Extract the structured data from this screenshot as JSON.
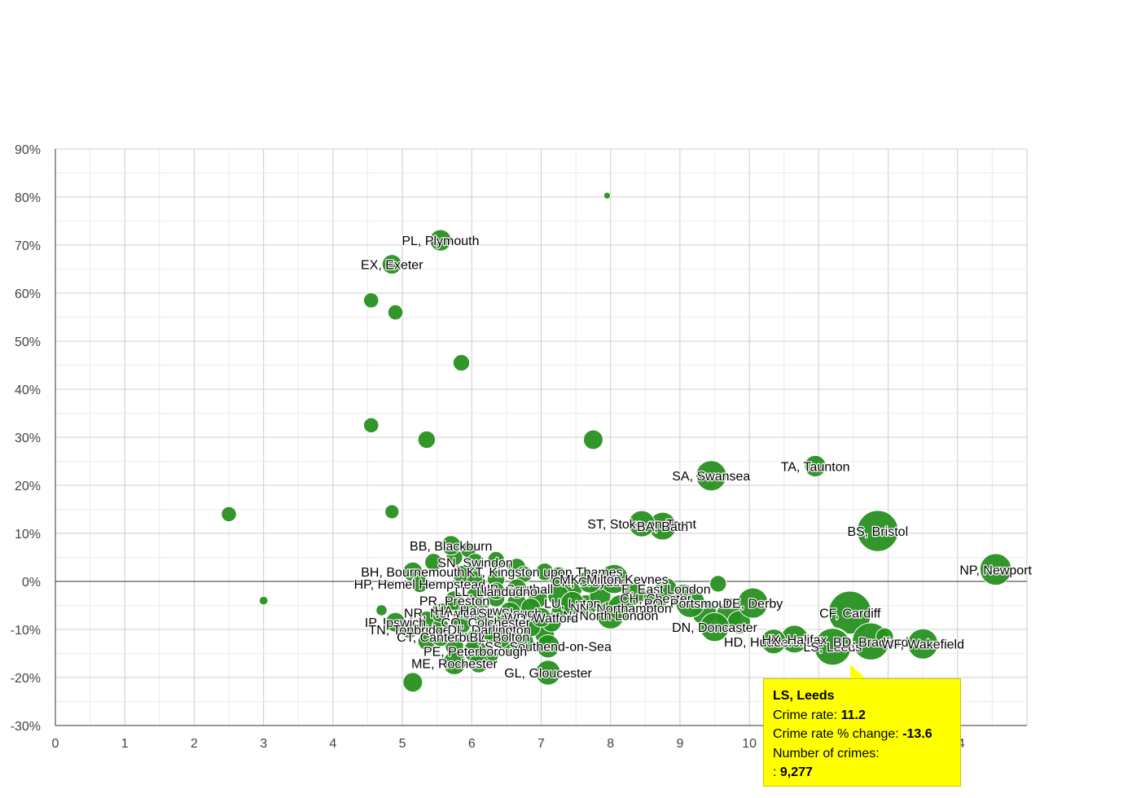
{
  "chart_data": {
    "type": "scatter",
    "variant": "bubble",
    "title": "",
    "xlabel": "",
    "ylabel": "",
    "xlim": [
      0,
      14
    ],
    "ylim": [
      -30,
      90
    ],
    "x_ticks": [
      "0",
      "1",
      "2",
      "3",
      "4",
      "5",
      "6",
      "7",
      "8",
      "9",
      "10",
      "",
      "",
      "14"
    ],
    "y_ticks": [
      "90%",
      "80%",
      "70%",
      "60%",
      "50%",
      "40%",
      "30%",
      "20%",
      "10%",
      "0%",
      "-10%",
      "-20%",
      "-30%"
    ],
    "grid": true,
    "color": "#27901f",
    "points": [
      {
        "label": "",
        "x": 7.95,
        "y": 80.3,
        "crimes": 300
      },
      {
        "label": "PL, Plymouth",
        "x": 5.55,
        "y": 71.0,
        "crimes": 3000
      },
      {
        "label": "EX, Exeter",
        "x": 4.85,
        "y": 66.0,
        "crimes": 2500
      },
      {
        "label": "",
        "x": 4.55,
        "y": 58.5,
        "crimes": 1500
      },
      {
        "label": "",
        "x": 4.9,
        "y": 56.0,
        "crimes": 1500
      },
      {
        "label": "",
        "x": 5.85,
        "y": 45.5,
        "crimes": 1800
      },
      {
        "label": "",
        "x": 4.55,
        "y": 32.5,
        "crimes": 1500
      },
      {
        "label": "",
        "x": 5.35,
        "y": 29.5,
        "crimes": 2000
      },
      {
        "label": "",
        "x": 7.75,
        "y": 29.5,
        "crimes": 2500
      },
      {
        "label": "SA, Swansea",
        "x": 9.45,
        "y": 22.0,
        "crimes": 6000
      },
      {
        "label": "TA, Taunton",
        "x": 10.95,
        "y": 24.0,
        "crimes": 3000
      },
      {
        "label": "",
        "x": 2.5,
        "y": 14.0,
        "crimes": 1500
      },
      {
        "label": "",
        "x": 4.85,
        "y": 14.5,
        "crimes": 1300
      },
      {
        "label": "ST, Stoke-on-Trent",
        "x": 8.45,
        "y": 12.0,
        "crimes": 4500
      },
      {
        "label": "BA, Bath",
        "x": 8.75,
        "y": 11.5,
        "crimes": 5000
      },
      {
        "label": "BS, Bristol",
        "x": 11.85,
        "y": 10.5,
        "crimes": 11000
      },
      {
        "label": "NP, Newport",
        "x": 13.55,
        "y": 2.5,
        "crimes": 6500
      },
      {
        "label": "BB, Blackburn",
        "x": 5.7,
        "y": 7.5,
        "crimes": 2500
      },
      {
        "label": "SN, Swindon",
        "x": 6.05,
        "y": 4.0,
        "crimes": 2000
      },
      {
        "label": "BH, Bournemouth",
        "x": 5.15,
        "y": 2.0,
        "crimes": 2500
      },
      {
        "label": "HP, Hemel Hempstead",
        "x": 5.25,
        "y": -0.5,
        "crimes": 2000
      },
      {
        "label": "KT, Kingston upon Thames",
        "x": 7.05,
        "y": 2.0,
        "crimes": 2000
      },
      {
        "label": "CR, Croydon",
        "x": 7.7,
        "y": 0.0,
        "crimes": 3500
      },
      {
        "label": "MK, Milton Keynes",
        "x": 8.05,
        "y": 0.5,
        "crimes": 5500
      },
      {
        "label": "E, East London",
        "x": 8.8,
        "y": -1.5,
        "crimes": 3000
      },
      {
        "label": "UB, Southall",
        "x": 6.65,
        "y": -1.5,
        "crimes": 2500
      },
      {
        "label": "LL, Llandudno",
        "x": 6.35,
        "y": -2.0,
        "crimes": 2000
      },
      {
        "label": "",
        "x": 9.55,
        "y": -0.5,
        "crimes": 1800
      },
      {
        "label": "CH, Chester",
        "x": 8.65,
        "y": -3.5,
        "crimes": 4000
      },
      {
        "label": "PO, Portsmouth",
        "x": 9.15,
        "y": -4.5,
        "crimes": 5500
      },
      {
        "label": "DE, Derby",
        "x": 10.05,
        "y": -4.5,
        "crimes": 6000
      },
      {
        "label": "PR, Preston",
        "x": 5.75,
        "y": -4.0,
        "crimes": 2500
      },
      {
        "label": "LU, Luton",
        "x": 7.45,
        "y": -4.5,
        "crimes": 3500
      },
      {
        "label": "NN, Northampton",
        "x": 8.15,
        "y": -5.5,
        "crimes": 4500
      },
      {
        "label": "N, North London",
        "x": 8.0,
        "y": -7.0,
        "crimes": 5000
      },
      {
        "label": "CF, Cardiff",
        "x": 11.45,
        "y": -6.5,
        "crimes": 12000
      },
      {
        "label": "NR, Norwich",
        "x": 5.55,
        "y": -6.5,
        "crimes": 2500
      },
      {
        "label": "HA, Harrow",
        "x": 5.95,
        "y": -6.0,
        "crimes": 2500
      },
      {
        "label": "SL, Slough",
        "x": 6.55,
        "y": -6.5,
        "crimes": 3000
      },
      {
        "label": "WD, Watford",
        "x": 7.0,
        "y": -7.5,
        "crimes": 2500
      },
      {
        "label": "CO, Colchester",
        "x": 6.2,
        "y": -8.5,
        "crimes": 3000
      },
      {
        "label": "DN, Doncaster",
        "x": 9.5,
        "y": -9.5,
        "crimes": 5500
      },
      {
        "label": "",
        "x": 4.7,
        "y": -6.0,
        "crimes": 800
      },
      {
        "label": "",
        "x": 3.0,
        "y": -4.0,
        "crimes": 500
      },
      {
        "label": "IP, Ipswich",
        "x": 4.9,
        "y": -8.5,
        "crimes": 2500
      },
      {
        "label": "TN, Tonbridge",
        "x": 5.1,
        "y": -10.0,
        "crimes": 2000
      },
      {
        "label": "DL, Darlington",
        "x": 6.25,
        "y": -10.0,
        "crimes": 3000
      },
      {
        "label": "CT, Canterbury",
        "x": 5.55,
        "y": -11.5,
        "crimes": 2500
      },
      {
        "label": "BL, Bolton",
        "x": 6.4,
        "y": -11.5,
        "crimes": 3500
      },
      {
        "label": "SS, Southend-on-Sea",
        "x": 7.1,
        "y": -13.5,
        "crimes": 3500
      },
      {
        "label": "HD, Huddersfield",
        "x": 10.35,
        "y": -12.5,
        "crimes": 4000
      },
      {
        "label": "HX, Halifax",
        "x": 10.65,
        "y": -12.0,
        "crimes": 5000
      },
      {
        "label": "LS, Leeds",
        "x": 11.2,
        "y": -13.6,
        "crimes": 9277,
        "highlight": true
      },
      {
        "label": "BD, Bradford",
        "x": 11.75,
        "y": -12.5,
        "crimes": 9000
      },
      {
        "label": "",
        "x": 11.95,
        "y": -11.5,
        "crimes": 2000
      },
      {
        "label": "WF, Wakefield",
        "x": 12.5,
        "y": -13.0,
        "crimes": 6000
      },
      {
        "label": "PE, Peterborough",
        "x": 6.05,
        "y": -14.5,
        "crimes": 3500
      },
      {
        "label": "ME, Rochester",
        "x": 5.75,
        "y": -17.0,
        "crimes": 3500
      },
      {
        "label": "",
        "x": 6.1,
        "y": -17.0,
        "crimes": 2500
      },
      {
        "label": "GL, Gloucester",
        "x": 7.1,
        "y": -19.0,
        "crimes": 4000
      },
      {
        "label": "",
        "x": 5.15,
        "y": -21.0,
        "crimes": 2500
      }
    ],
    "extra_points": [
      [
        5.45,
        4.0,
        2000
      ],
      [
        5.75,
        5.0,
        1800
      ],
      [
        5.95,
        6.5,
        1500
      ],
      [
        6.35,
        4.5,
        1800
      ],
      [
        6.65,
        3.0,
        2000
      ],
      [
        5.85,
        1.5,
        2000
      ],
      [
        6.05,
        0.5,
        1800
      ],
      [
        6.35,
        0.5,
        2000
      ],
      [
        6.75,
        1.5,
        1800
      ],
      [
        7.25,
        1.0,
        2500
      ],
      [
        7.45,
        -1.5,
        2500
      ],
      [
        7.25,
        -3.0,
        3000
      ],
      [
        6.95,
        -3.5,
        2500
      ],
      [
        6.65,
        -4.5,
        2500
      ],
      [
        6.35,
        -3.5,
        2000
      ],
      [
        6.05,
        -3.0,
        2000
      ],
      [
        5.75,
        -5.5,
        2000
      ],
      [
        6.15,
        -6.5,
        2200
      ],
      [
        6.45,
        -7.5,
        2200
      ],
      [
        6.85,
        -5.5,
        2500
      ],
      [
        7.3,
        -6.5,
        3000
      ],
      [
        7.65,
        -5.0,
        3000
      ],
      [
        7.85,
        -3.0,
        3000
      ],
      [
        8.35,
        -2.5,
        3500
      ],
      [
        9.05,
        -3.0,
        3500
      ],
      [
        9.35,
        -6.5,
        4000
      ],
      [
        9.7,
        -7.0,
        4000
      ],
      [
        9.85,
        -8.5,
        3500
      ],
      [
        5.35,
        -8.0,
        2000
      ],
      [
        5.55,
        -9.5,
        2000
      ],
      [
        5.85,
        -9.0,
        2200
      ],
      [
        6.05,
        -12.0,
        2500
      ],
      [
        6.55,
        -13.5,
        2500
      ],
      [
        6.75,
        -12.5,
        2500
      ],
      [
        7.05,
        -11.0,
        2500
      ],
      [
        5.35,
        -12.5,
        2000
      ],
      [
        5.75,
        -13.5,
        2200
      ],
      [
        6.25,
        -15.5,
        2200
      ],
      [
        6.85,
        -9.5,
        2500
      ],
      [
        7.15,
        -8.5,
        2500
      ]
    ]
  },
  "tooltip": {
    "title": "LS, Leeds",
    "rate_label": "Crime rate: ",
    "rate_value": "11.2",
    "change_label": "Crime rate % change: ",
    "change_value": "-13.6",
    "crimes_label": "Number of crimes:",
    "crimes_prefix": ": ",
    "crimes_value": "9,277"
  }
}
